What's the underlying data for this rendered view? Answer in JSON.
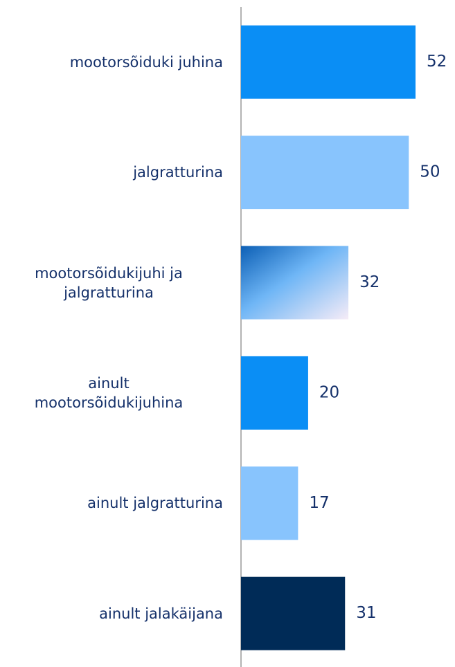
{
  "chart_data": {
    "type": "bar",
    "orientation": "horizontal",
    "categories": [
      "mootorsõiduki juhina",
      "jalgratturina",
      "mootorsõidukijuhi ja\njalgratturina",
      "ainult\nmootorsõidukijuhina",
      "ainult jalgratturina",
      "ainult jalakäijana"
    ],
    "values": [
      52,
      50,
      32,
      20,
      17,
      31
    ],
    "colors": [
      "#0a8ef5",
      "#88c4fd",
      "#6fb6f6",
      "#0a8ef5",
      "#88c4fd",
      "#002b57"
    ]
  }
}
